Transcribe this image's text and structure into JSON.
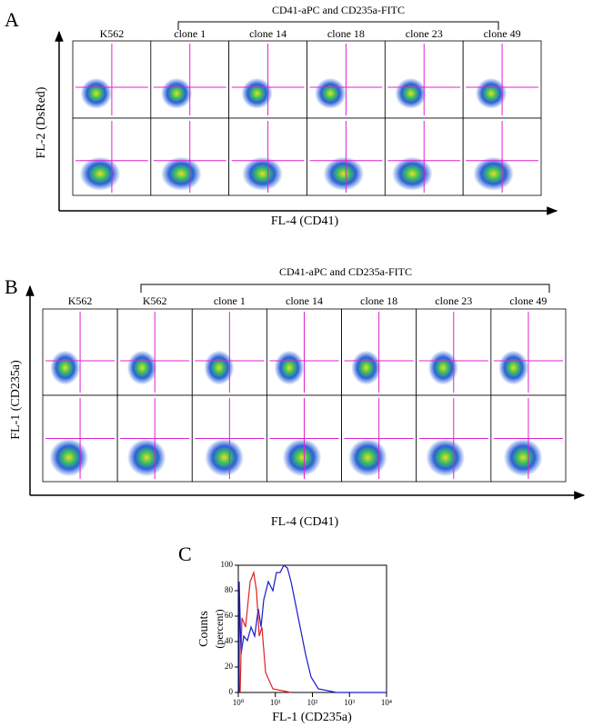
{
  "panel_a": {
    "label": "A",
    "title": "CD41-aPC and CD235a-FITC",
    "columns": [
      "K562",
      "clone 1",
      "clone 14",
      "clone 18",
      "clone 23",
      "clone 49"
    ],
    "y_axis_label": "FL-2 (DsRed)",
    "x_axis_label": "FL-4 (CD41)"
  },
  "panel_b": {
    "label": "B",
    "title": "CD41-aPC and CD235a-FITC",
    "columns": [
      "K562",
      "K562",
      "clone 1",
      "clone 14",
      "clone 18",
      "clone 23",
      "clone 49"
    ],
    "y_axis_label": "FL-1 (CD235a)",
    "x_axis_label": "FL-4 (CD41)"
  },
  "panel_c": {
    "label": "C",
    "y_axis_label": [
      "Counts",
      "(percent)"
    ],
    "x_axis_label": "FL-1 (CD235a)",
    "y_ticks": [
      0,
      20,
      40,
      60,
      80,
      100
    ],
    "x_ticks": [
      "10⁰",
      "10¹",
      "10²",
      "10³",
      "10⁴"
    ]
  }
}
